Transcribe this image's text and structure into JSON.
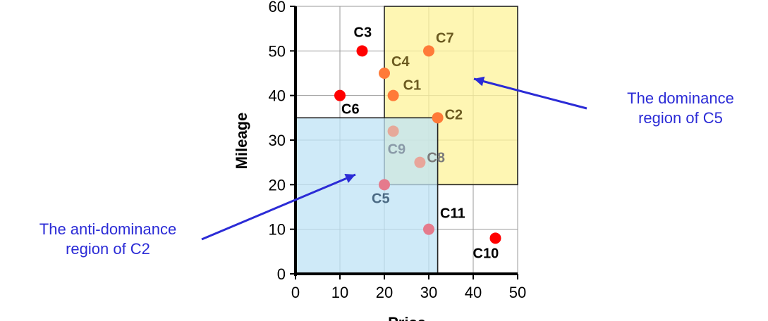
{
  "chart_data": {
    "type": "scatter",
    "xlabel": "Price",
    "ylabel": "Mileage",
    "xlim": [
      0,
      50
    ],
    "ylim": [
      0,
      60
    ],
    "xticks": [
      0,
      10,
      20,
      30,
      40,
      50
    ],
    "yticks": [
      0,
      10,
      20,
      30,
      40,
      50,
      60
    ],
    "grid": true,
    "points": [
      {
        "label": "C1",
        "x": 22,
        "y": 40
      },
      {
        "label": "C2",
        "x": 32,
        "y": 35
      },
      {
        "label": "C3",
        "x": 15,
        "y": 50
      },
      {
        "label": "C4",
        "x": 20,
        "y": 45
      },
      {
        "label": "C5",
        "x": 20,
        "y": 20
      },
      {
        "label": "C6",
        "x": 10,
        "y": 40
      },
      {
        "label": "C7",
        "x": 30,
        "y": 50
      },
      {
        "label": "C8",
        "x": 28,
        "y": 25
      },
      {
        "label": "C9",
        "x": 22,
        "y": 32
      },
      {
        "label": "C10",
        "x": 45,
        "y": 8
      },
      {
        "label": "C11",
        "x": 30,
        "y": 10
      }
    ],
    "regions": [
      {
        "name": "dominance region of C5",
        "x": [
          20,
          50
        ],
        "y": [
          20,
          60
        ],
        "color": "#fdf39a"
      },
      {
        "name": "anti-dominance region of C2",
        "x": [
          0,
          32
        ],
        "y": [
          0,
          35
        ],
        "color": "#bfe3f6"
      }
    ]
  },
  "annotations": {
    "dominance": [
      "The dominance",
      "region of C5"
    ],
    "anti_dominance": [
      "The anti-dominance",
      "region of C2"
    ]
  },
  "colors": {
    "point": "#ff0000",
    "annotation": "#2b2bd6",
    "arrow": "#2b2bd6"
  }
}
